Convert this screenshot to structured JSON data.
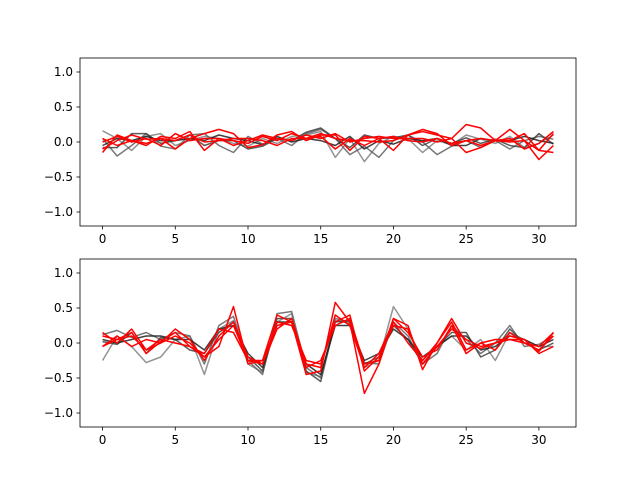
{
  "chart_data": [
    {
      "type": "line",
      "title": "",
      "xlabel": "",
      "ylabel": "",
      "xlim": [
        -1.55,
        32.55
      ],
      "ylim": [
        -1.2,
        1.2
      ],
      "xticks": [
        0,
        5,
        10,
        15,
        20,
        25,
        30
      ],
      "yticks": [
        -1.0,
        -0.5,
        0.0,
        0.5,
        1.0
      ],
      "x": [
        0,
        1,
        2,
        3,
        4,
        5,
        6,
        7,
        8,
        9,
        10,
        11,
        12,
        13,
        14,
        15,
        16,
        17,
        18,
        19,
        20,
        21,
        22,
        23,
        24,
        25,
        26,
        27,
        28,
        29,
        30,
        31
      ],
      "series": [
        {
          "color": "#808080",
          "values": [
            0.16,
            0.05,
            -0.12,
            0.08,
            0.12,
            -0.05,
            0.02,
            0.08,
            0.05,
            -0.02,
            -0.06,
            0.05,
            -0.02,
            0.08,
            0.1,
            0.15,
            -0.22,
            0.05,
            -0.28,
            -0.02,
            0.08,
            0.05,
            -0.15,
            0.02,
            -0.04,
            0.1,
            0.04,
            -0.02,
            0.08,
            -0.08,
            -0.02,
            0.1
          ]
        },
        {
          "color": "#606060",
          "values": [
            0.05,
            -0.2,
            -0.05,
            0.12,
            -0.06,
            -0.1,
            0.1,
            0.12,
            -0.05,
            -0.15,
            0.08,
            -0.03,
            0.05,
            -0.05,
            0.12,
            0.18,
            0.05,
            -0.18,
            -0.06,
            -0.22,
            0.02,
            0.1,
            0.0,
            -0.18,
            -0.06,
            0.02,
            -0.08,
            0.02,
            -0.1,
            0.02,
            0.08,
            0.04
          ]
        },
        {
          "color": "#404040",
          "values": [
            -0.08,
            -0.08,
            0.12,
            0.12,
            -0.02,
            0.02,
            0.1,
            -0.05,
            0.02,
            0.02,
            -0.1,
            -0.06,
            0.05,
            0.02,
            0.14,
            0.2,
            0.05,
            -0.08,
            0.1,
            0.05,
            0.06,
            0.1,
            -0.05,
            0.05,
            -0.02,
            0.06,
            -0.02,
            0.04,
            -0.05,
            -0.08,
            0.12,
            -0.03
          ]
        },
        {
          "color": "#202020",
          "values": [
            -0.05,
            0.05,
            0.02,
            0.08,
            0.02,
            0.02,
            0.05,
            0.02,
            0.1,
            0.05,
            0.02,
            -0.04,
            0.08,
            0.0,
            0.05,
            0.02,
            -0.05,
            0.08,
            -0.1,
            0.02,
            -0.03,
            0.05,
            0.02,
            0.05,
            -0.05,
            -0.05,
            0.05,
            0.02,
            0.02,
            0.08,
            0.02,
            -0.02
          ]
        },
        {
          "color": "#ff0000",
          "values": [
            -0.15,
            0.1,
            0.02,
            -0.05,
            0.08,
            0.05,
            0.15,
            -0.12,
            0.05,
            0.02,
            -0.02,
            0.08,
            0.02,
            0.12,
            0.05,
            0.12,
            0.05,
            0.02,
            0.02,
            0.0,
            0.02,
            0.1,
            0.15,
            0.1,
            0.05,
            0.25,
            0.2,
            0.02,
            0.18,
            0.02,
            -0.12,
            0.12
          ]
        },
        {
          "color": "#ff0000",
          "values": [
            -0.1,
            0.02,
            0.1,
            0.04,
            0.05,
            -0.1,
            0.05,
            0.12,
            0.18,
            0.12,
            -0.08,
            -0.04,
            0.1,
            0.15,
            0.02,
            0.1,
            0.1,
            -0.12,
            0.08,
            0.05,
            -0.12,
            0.1,
            0.18,
            0.12,
            -0.05,
            0.02,
            -0.05,
            0.02,
            0.05,
            -0.1,
            -0.02,
            0.15
          ]
        },
        {
          "color": "#ff0000",
          "values": [
            0.0,
            0.08,
            0.0,
            0.05,
            -0.05,
            0.12,
            0.02,
            0.05,
            0.05,
            -0.05,
            0.02,
            0.1,
            0.05,
            0.02,
            0.1,
            0.05,
            0.12,
            0.0,
            0.05,
            0.08,
            0.05,
            0.05,
            0.05,
            0.0,
            0.05,
            -0.15,
            -0.08,
            0.02,
            0.02,
            0.12,
            -0.12,
            -0.15
          ]
        },
        {
          "color": "#ff0000",
          "values": [
            0.05,
            -0.05,
            0.02,
            -0.02,
            0.05,
            0.02,
            0.1,
            0.0,
            0.02,
            0.05,
            0.05,
            0.02,
            -0.05,
            0.05,
            0.05,
            0.08,
            -0.1,
            0.05,
            -0.05,
            0.05,
            0.08,
            0.02,
            0.0,
            0.05,
            -0.02,
            0.02,
            0.05,
            0.02,
            0.0,
            0.02,
            -0.25,
            -0.05
          ]
        }
      ]
    },
    {
      "type": "line",
      "title": "",
      "xlabel": "",
      "ylabel": "",
      "xlim": [
        -1.55,
        32.55
      ],
      "ylim": [
        -1.2,
        1.2
      ],
      "xticks": [
        0,
        5,
        10,
        15,
        20,
        25,
        30
      ],
      "yticks": [
        -1.0,
        -0.5,
        0.0,
        0.5,
        1.0
      ],
      "x": [
        0,
        1,
        2,
        3,
        4,
        5,
        6,
        7,
        8,
        9,
        10,
        11,
        12,
        13,
        14,
        15,
        16,
        17,
        18,
        19,
        20,
        21,
        22,
        23,
        24,
        25,
        26,
        27,
        28,
        29,
        30,
        31
      ],
      "series": [
        {
          "color": "#808080",
          "values": [
            -0.25,
            0.1,
            -0.05,
            -0.28,
            -0.2,
            0.05,
            0.1,
            -0.45,
            0.2,
            0.32,
            -0.3,
            -0.42,
            0.3,
            0.42,
            -0.42,
            -0.48,
            0.32,
            0.28,
            -0.35,
            -0.25,
            0.52,
            0.2,
            -0.25,
            -0.05,
            0.1,
            -0.1,
            0.05,
            -0.25,
            0.15,
            0.05,
            -0.05,
            -0.05
          ]
        },
        {
          "color": "#606060",
          "values": [
            0.12,
            0.18,
            0.08,
            0.15,
            0.05,
            0.15,
            0.1,
            -0.3,
            0.25,
            0.38,
            -0.25,
            -0.45,
            0.42,
            0.45,
            -0.35,
            -0.5,
            0.35,
            0.3,
            -0.28,
            -0.3,
            0.3,
            0.1,
            -0.3,
            -0.15,
            0.25,
            0.05,
            -0.15,
            0.0,
            0.25,
            -0.05,
            -0.02,
            0.1
          ]
        },
        {
          "color": "#404040",
          "values": [
            0.02,
            -0.02,
            0.15,
            -0.15,
            0.08,
            0.05,
            -0.1,
            -0.15,
            0.15,
            0.3,
            -0.2,
            -0.4,
            0.35,
            0.35,
            -0.4,
            -0.55,
            0.3,
            0.32,
            -0.3,
            -0.2,
            0.25,
            0.05,
            -0.3,
            -0.05,
            0.15,
            0.15,
            -0.2,
            -0.1,
            0.2,
            0.0,
            -0.1,
            0.0
          ]
        },
        {
          "color": "#202020",
          "values": [
            0.05,
            0.0,
            0.05,
            0.1,
            0.1,
            0.05,
            0.05,
            -0.1,
            0.2,
            0.25,
            -0.15,
            -0.35,
            0.3,
            0.3,
            -0.3,
            -0.45,
            0.25,
            0.25,
            -0.25,
            -0.15,
            0.2,
            0.05,
            -0.2,
            -0.05,
            0.1,
            0.1,
            -0.1,
            -0.05,
            0.1,
            0.05,
            -0.05,
            0.05
          ]
        },
        {
          "color": "#ff0000",
          "values": [
            -0.05,
            0.05,
            0.15,
            -0.15,
            0.02,
            0.15,
            -0.05,
            -0.2,
            -0.05,
            0.52,
            -0.3,
            -0.25,
            0.4,
            0.3,
            -0.45,
            -0.4,
            0.58,
            0.3,
            -0.72,
            -0.3,
            0.35,
            0.25,
            -0.38,
            0.0,
            0.35,
            0.0,
            -0.08,
            0.0,
            0.1,
            0.05,
            -0.12,
            0.15
          ]
        },
        {
          "color": "#ff0000",
          "values": [
            0.15,
            0.0,
            0.2,
            -0.1,
            0.05,
            0.0,
            -0.05,
            -0.15,
            0.2,
            0.15,
            -0.25,
            -0.3,
            0.2,
            0.35,
            -0.3,
            -0.35,
            0.4,
            0.25,
            -0.35,
            -0.15,
            0.3,
            0.0,
            -0.25,
            0.0,
            0.3,
            -0.1,
            0.0,
            -0.1,
            0.15,
            0.0,
            -0.05,
            0.15
          ]
        },
        {
          "color": "#ff0000",
          "values": [
            -0.05,
            0.1,
            -0.05,
            0.05,
            0.0,
            0.2,
            0.05,
            -0.25,
            0.1,
            0.3,
            -0.2,
            -0.3,
            0.3,
            0.25,
            -0.25,
            -0.3,
            0.3,
            0.4,
            -0.4,
            -0.2,
            0.25,
            0.2,
            -0.3,
            -0.05,
            0.2,
            0.05,
            -0.05,
            0.0,
            0.05,
            0.05,
            -0.15,
            -0.05
          ]
        },
        {
          "color": "#ff0000",
          "values": [
            0.1,
            0.05,
            0.1,
            -0.1,
            0.0,
            0.1,
            0.0,
            -0.2,
            0.05,
            0.25,
            -0.25,
            -0.25,
            0.25,
            0.3,
            -0.35,
            -0.25,
            0.25,
            0.35,
            -0.3,
            -0.25,
            0.35,
            0.15,
            -0.2,
            -0.1,
            0.25,
            -0.15,
            0.0,
            0.05,
            0.05,
            0.0,
            -0.1,
            0.1
          ]
        }
      ]
    }
  ]
}
